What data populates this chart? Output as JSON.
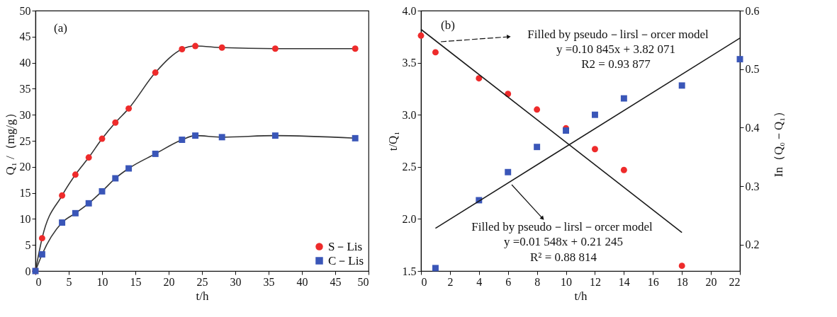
{
  "chart_data": [
    {
      "type": "line",
      "title": "(a)",
      "xlabel": "t/h",
      "ylabel": "Q₁ /（mg/g）",
      "x": [
        0,
        1,
        4,
        6,
        8,
        10,
        12,
        14,
        18,
        22,
        24,
        28,
        36,
        48
      ],
      "series": [
        {
          "name": "S－Lis",
          "color": "#ee2b2b",
          "marker": "circle",
          "values": [
            0,
            6.3,
            14.5,
            18.5,
            21.8,
            25.4,
            28.5,
            31.2,
            38.1,
            42.6,
            43.2,
            42.9,
            42.7,
            42.7
          ]
        },
        {
          "name": "C－Lis",
          "color": "#3a56b8",
          "marker": "square",
          "values": [
            0,
            3.2,
            9.3,
            11.1,
            13.0,
            15.3,
            17.8,
            19.7,
            22.5,
            25.2,
            26.0,
            25.7,
            26.0,
            25.5
          ]
        }
      ],
      "xlim": [
        0,
        50
      ],
      "xticks": [
        0,
        5,
        10,
        15,
        20,
        25,
        30,
        35,
        40,
        45,
        50
      ],
      "ylim": [
        0,
        50
      ],
      "yticks": [
        0,
        5,
        10,
        15,
        20,
        25,
        30,
        35,
        40,
        45,
        50
      ],
      "legend": "bottom right"
    },
    {
      "type": "scatter",
      "title": "(b)",
      "xlabel": "t/h",
      "ylabel": "t/Q₁",
      "y2label": "In（Q₀－Q₁）",
      "x": [
        0,
        1,
        4,
        6,
        8,
        10,
        12,
        14,
        18
      ],
      "series": [
        {
          "color": "#ee2b2b",
          "marker": "circle",
          "values": [
            3.76,
            3.6,
            3.35,
            3.2,
            3.05,
            2.87,
            2.67,
            2.47,
            1.55
          ]
        },
        {
          "color": "#3a56b8",
          "marker": "square",
          "axis": "y2",
          "x": [
            1,
            4,
            6,
            8,
            10,
            12,
            14,
            18,
            22
          ],
          "values": [
            0.16,
            0.276,
            0.324,
            0.367,
            0.395,
            0.422,
            0.45,
            0.472,
            0.517
          ]
        },
        {
          "type": "line",
          "color": "#1a1a1a",
          "marker": "none",
          "x": [
            0,
            18
          ],
          "values": [
            3.82,
            1.87
          ]
        },
        {
          "type": "line",
          "color": "#1a1a1a",
          "marker": "none",
          "axis": "y2",
          "x": [
            1,
            22
          ],
          "values": [
            0.228,
            0.553
          ]
        }
      ],
      "xlim": [
        0,
        22
      ],
      "xticks": [
        0,
        2,
        4,
        6,
        8,
        10,
        12,
        14,
        16,
        18,
        20,
        22
      ],
      "ylim": [
        1.5,
        4.0
      ],
      "yticks": [
        1.5,
        {
          "value": 2,
          "label": "2.0"
        },
        2.5,
        {
          "value": 3,
          "label": "3.0"
        },
        3.5,
        {
          "value": 4,
          "label": "4.0"
        }
      ],
      "y2lim": [
        0.155,
        0.6
      ],
      "y2ticks": [
        0.2,
        0.3,
        0.4,
        0.5,
        0.6
      ],
      "annotations": [
        "Filled by pseudo－lirsl－orcer model",
        "y =0.10 845x + 3.82 071",
        "R2 = 0.93 877",
        "Filled by pseudo－lirsl－orcer model",
        "y =0.01 548x + 0.21 245",
        "R² = 0.88 814"
      ]
    }
  ]
}
